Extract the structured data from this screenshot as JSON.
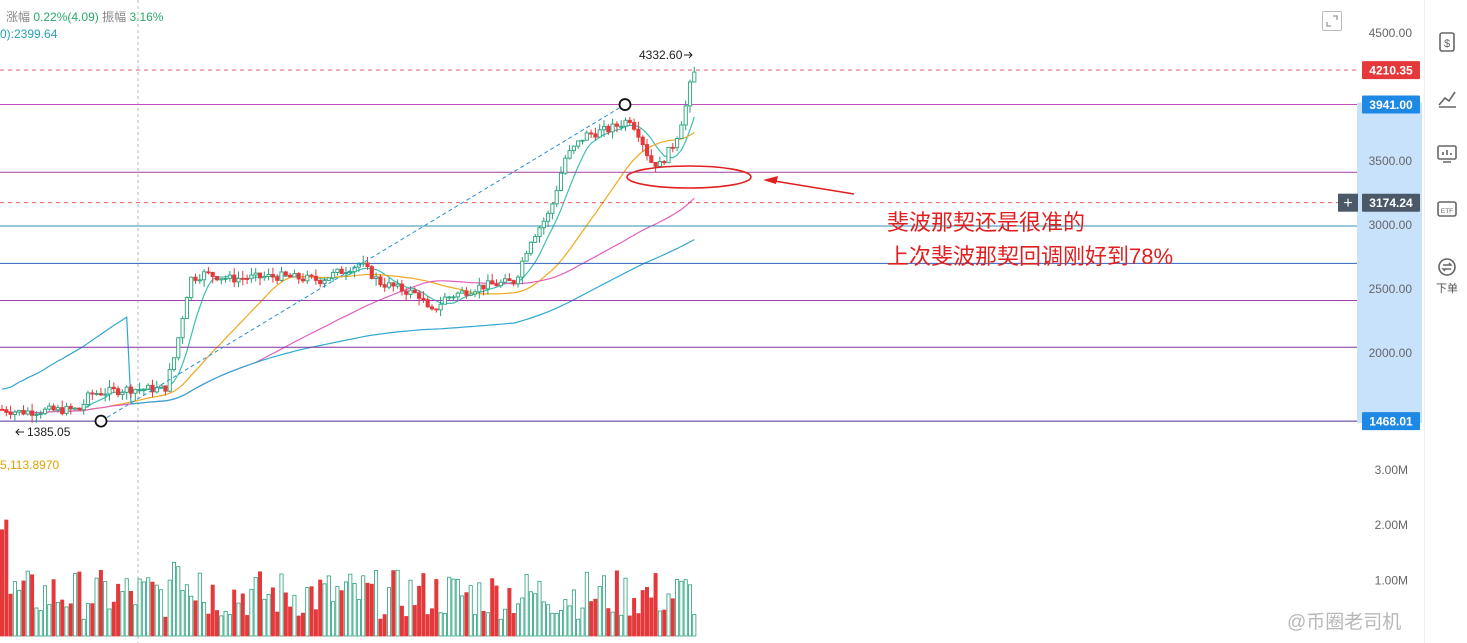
{
  "header": {
    "change_label": "涨幅",
    "change_value": "0.22%(4.09)",
    "amplitude_label": "振幅",
    "amplitude_value": "3.16%",
    "ma_text": "0):2399.64",
    "volume_ma_text": "5,113.8970"
  },
  "annotation": {
    "line1": "斐波那契还是很准的",
    "line2": "上次斐波那契回调刚好到78%"
  },
  "watermark": "@币圈老司机",
  "sidebar": {
    "items": [
      {
        "icon": "dollar-doc-icon"
      },
      {
        "icon": "chart-trend-icon"
      },
      {
        "icon": "monitor-chart-icon"
      },
      {
        "icon": "etf-icon"
      },
      {
        "icon": "order-icon",
        "label": "下单"
      }
    ]
  },
  "chart_data": {
    "type": "candlestick",
    "price_axis": {
      "ticks": [
        "4500.00",
        "3500.00",
        "3000.00",
        "2500.00",
        "2000.00"
      ],
      "tick_values": [
        4500,
        3500,
        3000,
        2500,
        2000
      ]
    },
    "volume_axis": {
      "ticks": [
        "3.00M",
        "2.00M",
        "1.00M"
      ],
      "tick_values": [
        3000000,
        2000000,
        1000000
      ]
    },
    "price_tags": [
      {
        "label": "4210.35",
        "value": 4210.35,
        "color": "#e5383b"
      },
      {
        "label": "3941.00",
        "value": 3941.0,
        "color": "#1e88e5"
      },
      {
        "label": "3174.24",
        "value": 3174.24,
        "color": "#4a5868"
      },
      {
        "label": "1468.01",
        "value": 1468.01,
        "color": "#1e88e5"
      }
    ],
    "highest_label": "4332.60",
    "lowest_label": "1385.05",
    "fib_levels": [
      {
        "value": 3941.0,
        "color": "#c050c0"
      },
      {
        "value": 3412,
        "color": "#a040a0"
      },
      {
        "value": 2992,
        "color": "#3090b0"
      },
      {
        "value": 2700,
        "color": "#3060c0"
      },
      {
        "value": 2410,
        "color": "#a040b0"
      },
      {
        "value": 2045,
        "color": "#8030a0"
      },
      {
        "value": 1468.01,
        "color": "#5030a0"
      }
    ],
    "dashed_levels": [
      4210.35,
      3174.24
    ],
    "pivots": [
      {
        "label": "low",
        "value": 1468.01
      },
      {
        "label": "high",
        "value": 3941.0
      }
    ]
  }
}
